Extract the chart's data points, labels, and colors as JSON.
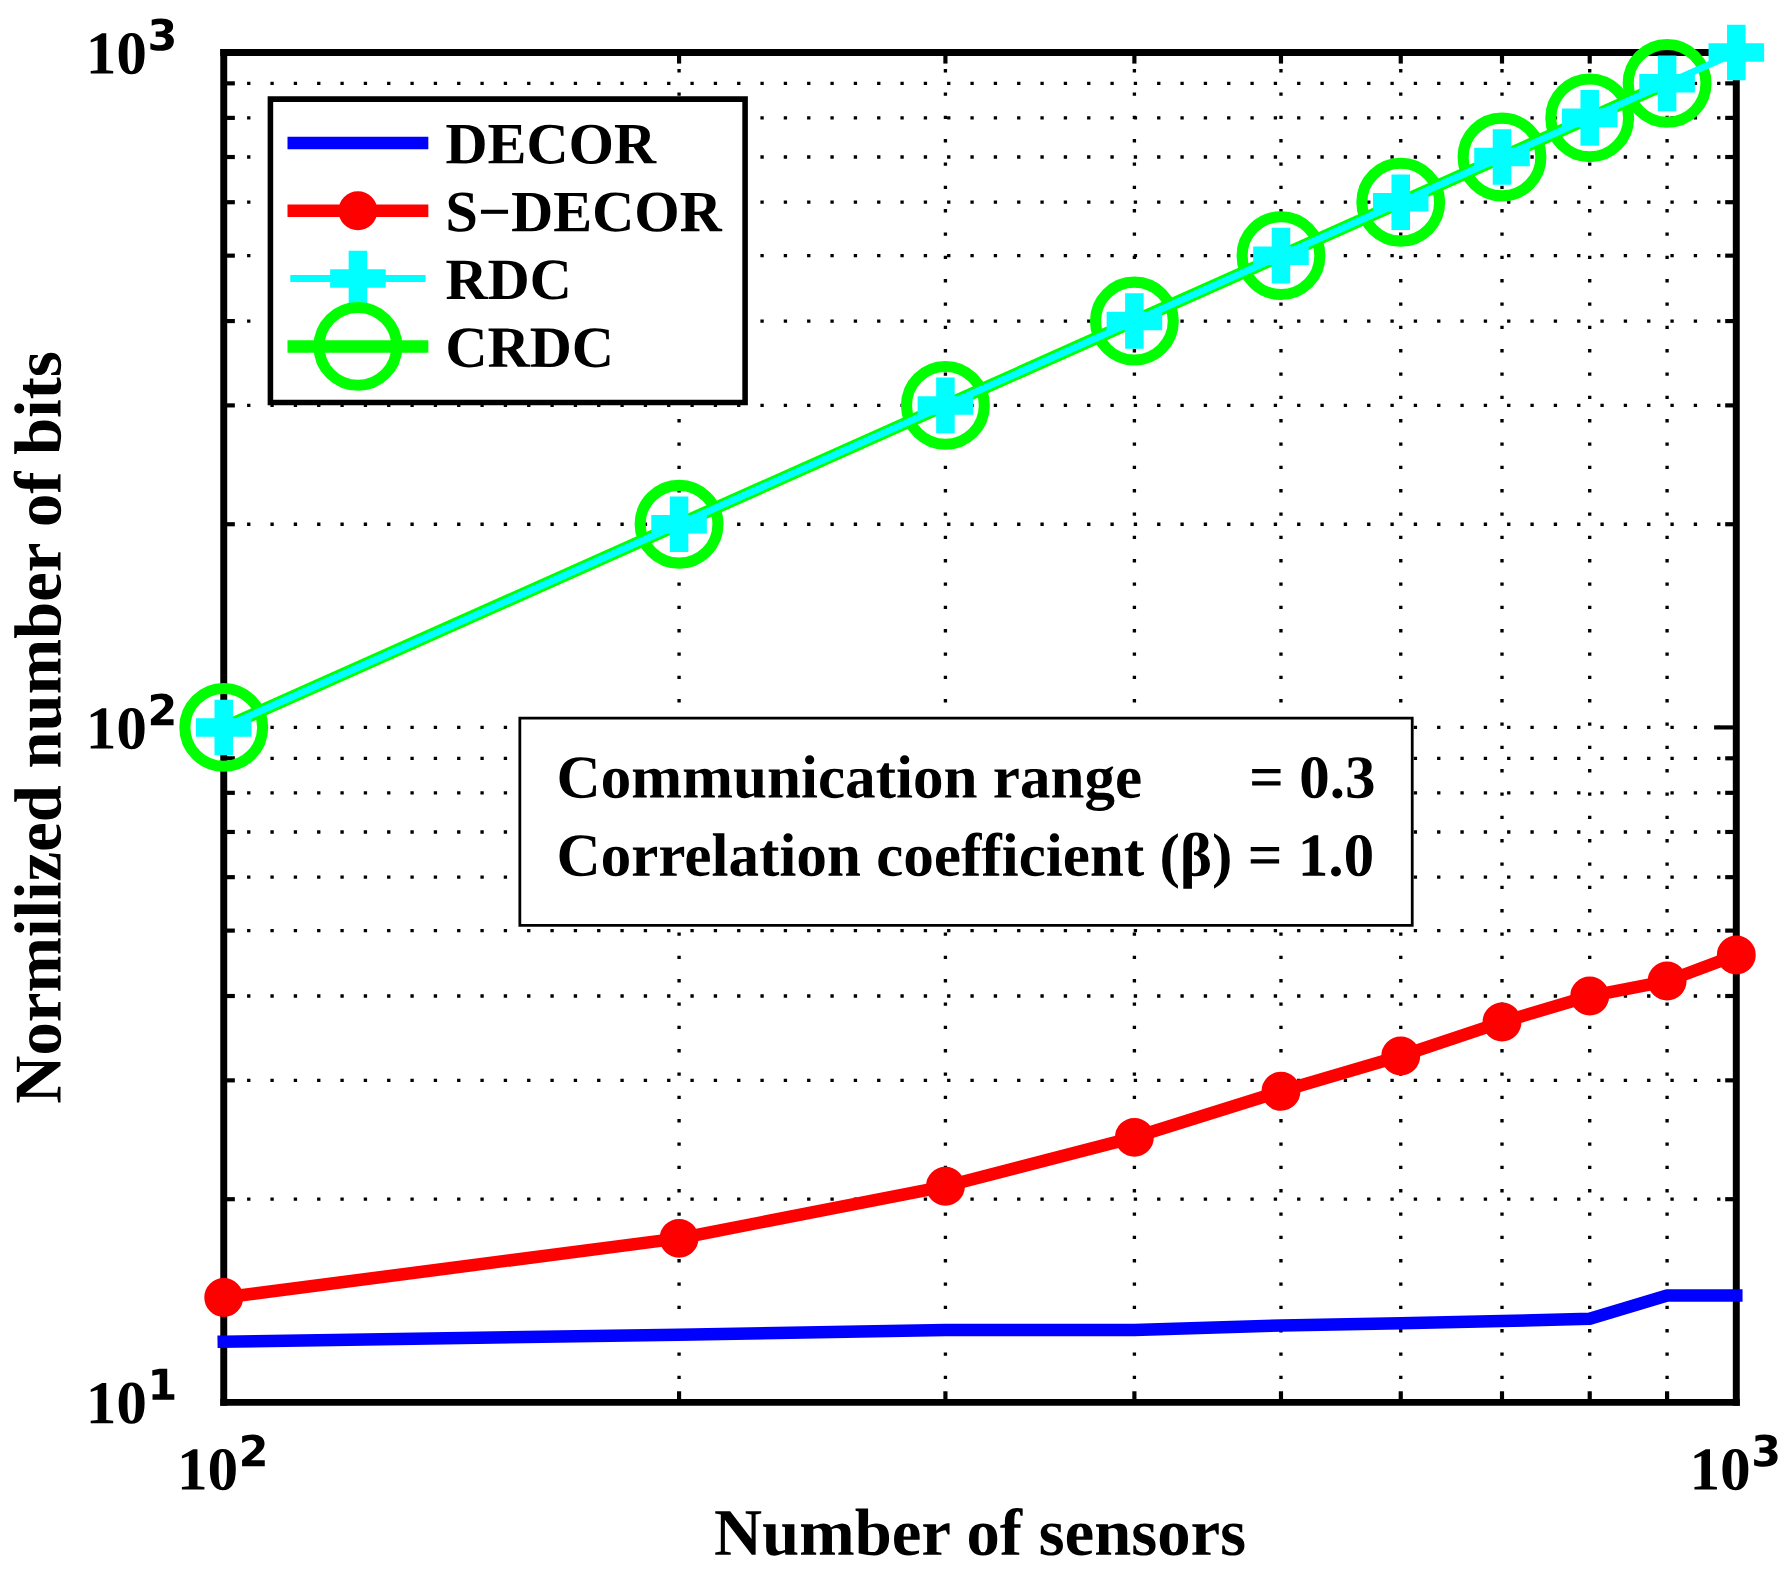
{
  "chart_data": {
    "type": "line",
    "xlabel": "Number of sensors",
    "ylabel": "Normilized number of bits",
    "log": "xy",
    "grid": true,
    "legend": "top left",
    "x": [
      100,
      200,
      300,
      400,
      500,
      600,
      700,
      800,
      900,
      1000
    ],
    "xlim": [
      100,
      1000
    ],
    "xticks": [
      {
        "value": 100,
        "label": "10$^{2}$"
      },
      {
        "value": 1000,
        "label": "10$^{3}$"
      }
    ],
    "ylim": [
      10,
      1000
    ],
    "yticks": [
      {
        "value": 10,
        "label": "10$^{1}$"
      },
      {
        "value": 100,
        "label": "10$^{2}$"
      },
      {
        "value": 1000,
        "label": "10$^{3}$"
      }
    ],
    "series": [
      {
        "name": "DECOR",
        "color": "#0000ff",
        "marker": "none",
        "values": [
          12.3,
          12.6,
          12.8,
          12.8,
          13.0,
          13.1,
          13.2,
          13.3,
          14.4,
          14.4
        ]
      },
      {
        "name": "S−DECOR",
        "color": "#ff0000",
        "marker": "circle",
        "values": [
          14.3,
          17.5,
          20.9,
          24.7,
          28.9,
          32.6,
          36.6,
          40.0,
          42.1,
          46.0
        ]
      },
      {
        "name": "RDC",
        "color": "#00ffff",
        "marker": "cross",
        "values": [
          100,
          200,
          300,
          400,
          500,
          600,
          700,
          800,
          900,
          1000
        ]
      },
      {
        "name": "CRDC",
        "color": "#00ff00",
        "marker": "circle",
        "values": [
          100,
          200,
          300,
          400,
          500,
          600,
          700,
          800,
          900,
          null
        ]
      }
    ],
    "annotations": [
      "Communication range       = 0.3\nCorrelation coefficient (β) = 1.0"
    ]
  }
}
